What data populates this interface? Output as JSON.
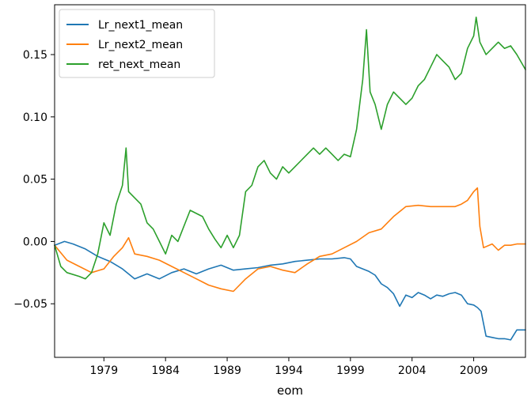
{
  "chart_data": {
    "type": "line",
    "title": "",
    "xlabel": "eom",
    "ylabel": "",
    "xlim": [
      1975.0,
      2013.2
    ],
    "ylim": [
      -0.093,
      0.19
    ],
    "grid": false,
    "legend_position": "upper-left",
    "x_ticks": [
      1979,
      1984,
      1989,
      1994,
      1999,
      2004,
      2009
    ],
    "x_tick_labels": [
      "1979",
      "1984",
      "1989",
      "1994",
      "1999",
      "2004",
      "2009"
    ],
    "y_ticks": [
      -0.05,
      0.0,
      0.05,
      0.1,
      0.15
    ],
    "y_tick_labels": [
      "−0.05",
      "0.00",
      "0.05",
      "0.10",
      "0.15"
    ],
    "series": [
      {
        "name": "Lr_next1_mean",
        "color": "#1f77b4",
        "x": [
          1975.0,
          1975.8,
          1976.5,
          1977.5,
          1978.5,
          1979.5,
          1980.5,
          1981.5,
          1982.5,
          1983.5,
          1984.5,
          1985.5,
          1986.5,
          1987.5,
          1988.5,
          1989.5,
          1990.5,
          1991.5,
          1992.5,
          1993.5,
          1994.5,
          1995.5,
          1996.5,
          1997.5,
          1998.5,
          1999.0,
          1999.5,
          2000.0,
          2000.5,
          2001.0,
          2001.5,
          2002.0,
          2002.5,
          2003.0,
          2003.5,
          2004.0,
          2004.5,
          2005.0,
          2005.5,
          2006.0,
          2006.5,
          2007.0,
          2007.5,
          2008.0,
          2008.5,
          2009.0,
          2009.3,
          2009.6,
          2010.0,
          2010.5,
          2011.0,
          2011.5,
          2012.0,
          2012.5,
          2013.2
        ],
        "y": [
          -0.003,
          0.0,
          -0.002,
          -0.006,
          -0.012,
          -0.016,
          -0.022,
          -0.03,
          -0.026,
          -0.03,
          -0.025,
          -0.022,
          -0.026,
          -0.022,
          -0.019,
          -0.023,
          -0.022,
          -0.021,
          -0.019,
          -0.018,
          -0.016,
          -0.015,
          -0.014,
          -0.014,
          -0.013,
          -0.014,
          -0.02,
          -0.022,
          -0.024,
          -0.027,
          -0.034,
          -0.037,
          -0.042,
          -0.052,
          -0.043,
          -0.045,
          -0.041,
          -0.043,
          -0.046,
          -0.043,
          -0.044,
          -0.042,
          -0.041,
          -0.043,
          -0.05,
          -0.051,
          -0.053,
          -0.056,
          -0.076,
          -0.077,
          -0.078,
          -0.078,
          -0.079,
          -0.071,
          -0.071
        ]
      },
      {
        "name": "Lr_next2_mean",
        "color": "#ff7f0e",
        "x": [
          1975.0,
          1976.0,
          1977.0,
          1978.0,
          1979.0,
          1979.8,
          1980.5,
          1981.0,
          1981.5,
          1982.5,
          1983.5,
          1984.5,
          1985.5,
          1986.5,
          1987.5,
          1988.5,
          1989.5,
          1990.5,
          1991.5,
          1992.5,
          1993.5,
          1994.5,
          1995.5,
          1996.5,
          1997.5,
          1998.5,
          1999.5,
          2000.5,
          2001.5,
          2002.5,
          2003.5,
          2004.5,
          2005.5,
          2006.5,
          2007.5,
          2008.0,
          2008.5,
          2009.0,
          2009.3,
          2009.5,
          2009.8,
          2010.5,
          2011.0,
          2011.5,
          2012.0,
          2012.5,
          2013.2
        ],
        "y": [
          -0.003,
          -0.015,
          -0.02,
          -0.025,
          -0.022,
          -0.012,
          -0.005,
          0.003,
          -0.01,
          -0.012,
          -0.015,
          -0.02,
          -0.025,
          -0.03,
          -0.035,
          -0.038,
          -0.04,
          -0.03,
          -0.022,
          -0.02,
          -0.023,
          -0.025,
          -0.018,
          -0.012,
          -0.01,
          -0.005,
          0.0,
          0.007,
          0.01,
          0.02,
          0.028,
          0.029,
          0.028,
          0.028,
          0.028,
          0.03,
          0.033,
          0.04,
          0.043,
          0.012,
          -0.005,
          -0.002,
          -0.007,
          -0.003,
          -0.003,
          -0.002,
          -0.002
        ]
      },
      {
        "name": "ret_next_mean",
        "color": "#2ca02c",
        "x": [
          1975.0,
          1975.5,
          1976.0,
          1977.0,
          1977.5,
          1978.0,
          1978.5,
          1979.0,
          1979.5,
          1980.0,
          1980.5,
          1980.8,
          1981.0,
          1981.5,
          1982.0,
          1982.5,
          1983.0,
          1983.5,
          1984.0,
          1984.5,
          1985.0,
          1986.0,
          1987.0,
          1987.5,
          1988.0,
          1988.5,
          1989.0,
          1989.5,
          1990.0,
          1990.5,
          1991.0,
          1991.5,
          1992.0,
          1992.5,
          1993.0,
          1993.5,
          1994.0,
          1994.5,
          1995.0,
          1995.5,
          1996.0,
          1996.5,
          1997.0,
          1997.5,
          1998.0,
          1998.5,
          1999.0,
          1999.5,
          2000.0,
          2000.3,
          2000.6,
          2001.0,
          2001.5,
          2002.0,
          2002.5,
          2003.0,
          2003.5,
          2004.0,
          2004.5,
          2005.0,
          2005.5,
          2006.0,
          2006.5,
          2007.0,
          2007.5,
          2008.0,
          2008.5,
          2009.0,
          2009.2,
          2009.5,
          2010.0,
          2010.5,
          2011.0,
          2011.5,
          2012.0,
          2012.5,
          2013.2
        ],
        "y": [
          -0.003,
          -0.02,
          -0.025,
          -0.028,
          -0.03,
          -0.025,
          -0.01,
          0.015,
          0.005,
          0.03,
          0.045,
          0.075,
          0.04,
          0.035,
          0.03,
          0.015,
          0.01,
          0.0,
          -0.01,
          0.005,
          0.0,
          0.025,
          0.02,
          0.01,
          0.002,
          -0.005,
          0.005,
          -0.005,
          0.005,
          0.04,
          0.045,
          0.06,
          0.065,
          0.055,
          0.05,
          0.06,
          0.055,
          0.06,
          0.065,
          0.07,
          0.075,
          0.07,
          0.075,
          0.07,
          0.065,
          0.07,
          0.068,
          0.09,
          0.13,
          0.17,
          0.12,
          0.11,
          0.09,
          0.11,
          0.12,
          0.115,
          0.11,
          0.115,
          0.125,
          0.13,
          0.14,
          0.15,
          0.145,
          0.14,
          0.13,
          0.135,
          0.155,
          0.165,
          0.18,
          0.16,
          0.15,
          0.155,
          0.16,
          0.155,
          0.157,
          0.15,
          0.138
        ]
      }
    ]
  }
}
